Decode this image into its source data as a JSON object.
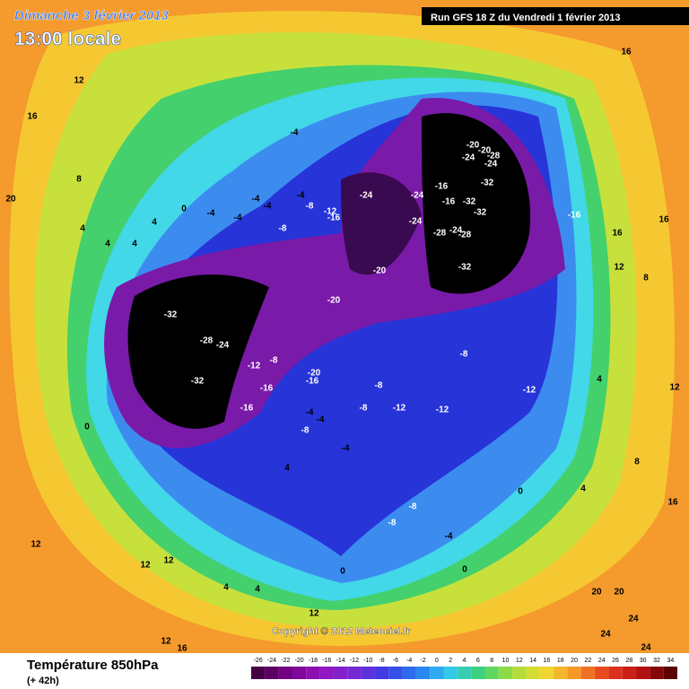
{
  "header": {
    "date": "Dimanche 3 février 2013",
    "time": "13:00 locale",
    "run": "Run GFS 18 Z du Vendredi 1 février 2013"
  },
  "copyright": "Copyright © 2012 Meteociel.fr",
  "footer": {
    "title": "Température 850hPa",
    "lead": "(+ 42h)"
  },
  "legend": {
    "ticks": [
      -26,
      -24,
      -22,
      -20,
      -18,
      -16,
      -14,
      -12,
      -10,
      -8,
      -6,
      -4,
      -2,
      0,
      2,
      4,
      6,
      8,
      10,
      12,
      14,
      16,
      18,
      20,
      22,
      24,
      26,
      28,
      30,
      32,
      34
    ]
  },
  "contour_labels": [
    12,
    16,
    8,
    20,
    4,
    4,
    4,
    4,
    0,
    -4,
    -4,
    -4,
    -4,
    -4,
    -4,
    -8,
    -12,
    -16,
    -8,
    -24,
    -24,
    -16,
    -16,
    -32,
    -32,
    -24,
    -28,
    -24,
    -28,
    -20,
    -32,
    -20,
    -20,
    -24,
    -28,
    -24,
    -32,
    -16,
    -20,
    -32,
    -28,
    -24,
    -12,
    -8,
    -32,
    -16,
    -16,
    -20,
    -16,
    -8,
    -12,
    -8,
    -8,
    -12,
    -12,
    -4,
    -4,
    -8,
    -4,
    0,
    4,
    0,
    -8,
    -8,
    -4,
    0,
    0,
    4,
    4,
    12,
    12,
    12,
    12,
    16,
    16,
    12,
    8,
    4,
    12,
    20,
    20,
    24,
    24,
    24,
    16,
    12,
    16,
    8,
    4,
    16
  ]
}
